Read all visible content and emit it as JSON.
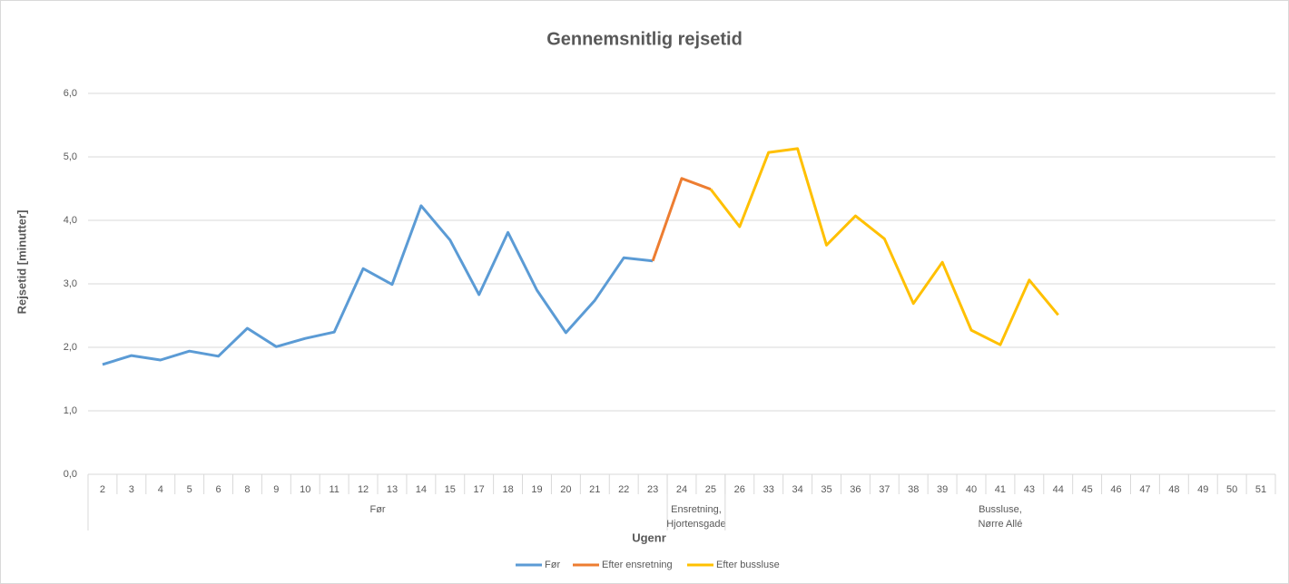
{
  "chart_data": {
    "type": "line",
    "title": "Gennemsnitlig rejsetid",
    "y_label": "Rejsetid [minutter]",
    "x_label": "Ugenr",
    "categories": [
      "2",
      "3",
      "4",
      "5",
      "6",
      "8",
      "9",
      "10",
      "11",
      "12",
      "13",
      "14",
      "15",
      "17",
      "18",
      "19",
      "20",
      "21",
      "22",
      "23",
      "24",
      "25",
      "26",
      "33",
      "34",
      "35",
      "36",
      "37",
      "38",
      "39",
      "40",
      "41",
      "43",
      "44",
      "45",
      "46",
      "47",
      "48",
      "49",
      "50",
      "51"
    ],
    "groups": [
      {
        "label": [
          "Før"
        ],
        "start": 0,
        "end": 19
      },
      {
        "label": [
          "Ensretning,",
          "Hjortensgade"
        ],
        "start": 20,
        "end": 21
      },
      {
        "label": [
          "Bussluse,",
          "Nørre Allé"
        ],
        "start": 22,
        "end": 40
      }
    ],
    "series": [
      {
        "name": "Før",
        "color": "#5b9bd5",
        "values": [
          1.73,
          1.87,
          1.8,
          1.94,
          1.86,
          2.3,
          2.01,
          2.14,
          2.24,
          3.24,
          2.99,
          4.23,
          3.69,
          2.83,
          3.81,
          2.9,
          2.23,
          2.74,
          3.41,
          3.36,
          null,
          null,
          null,
          null,
          null,
          null,
          null,
          null,
          null,
          null,
          null,
          null,
          null,
          null,
          null,
          null,
          null,
          null,
          null,
          null,
          null
        ]
      },
      {
        "name": "Efter ensretning",
        "color": "#ed7d31",
        "values": [
          null,
          null,
          null,
          null,
          null,
          null,
          null,
          null,
          null,
          null,
          null,
          null,
          null,
          null,
          null,
          null,
          null,
          null,
          null,
          3.36,
          4.66,
          4.49,
          null,
          null,
          null,
          null,
          null,
          null,
          null,
          null,
          null,
          null,
          null,
          null,
          null,
          null,
          null,
          null,
          null,
          null,
          null
        ]
      },
      {
        "name": "Efter bussluse",
        "color": "#ffc000",
        "values": [
          null,
          null,
          null,
          null,
          null,
          null,
          null,
          null,
          null,
          null,
          null,
          null,
          null,
          null,
          null,
          null,
          null,
          null,
          null,
          null,
          null,
          4.49,
          3.9,
          5.07,
          5.13,
          3.61,
          4.07,
          3.71,
          2.69,
          3.34,
          2.27,
          2.04,
          3.06,
          2.51,
          null,
          null,
          null,
          null,
          null,
          null,
          null
        ]
      }
    ],
    "ylim": [
      0,
      6
    ],
    "yticks": [
      {
        "value": 0,
        "label": "0,0"
      },
      {
        "value": 1,
        "label": "1,0"
      },
      {
        "value": 2,
        "label": "2,0"
      },
      {
        "value": 3,
        "label": "3,0"
      },
      {
        "value": 4,
        "label": "4,0"
      },
      {
        "value": 5,
        "label": "5,0"
      },
      {
        "value": 6,
        "label": "6,0"
      }
    ],
    "grid": true,
    "legend": "bottom"
  }
}
